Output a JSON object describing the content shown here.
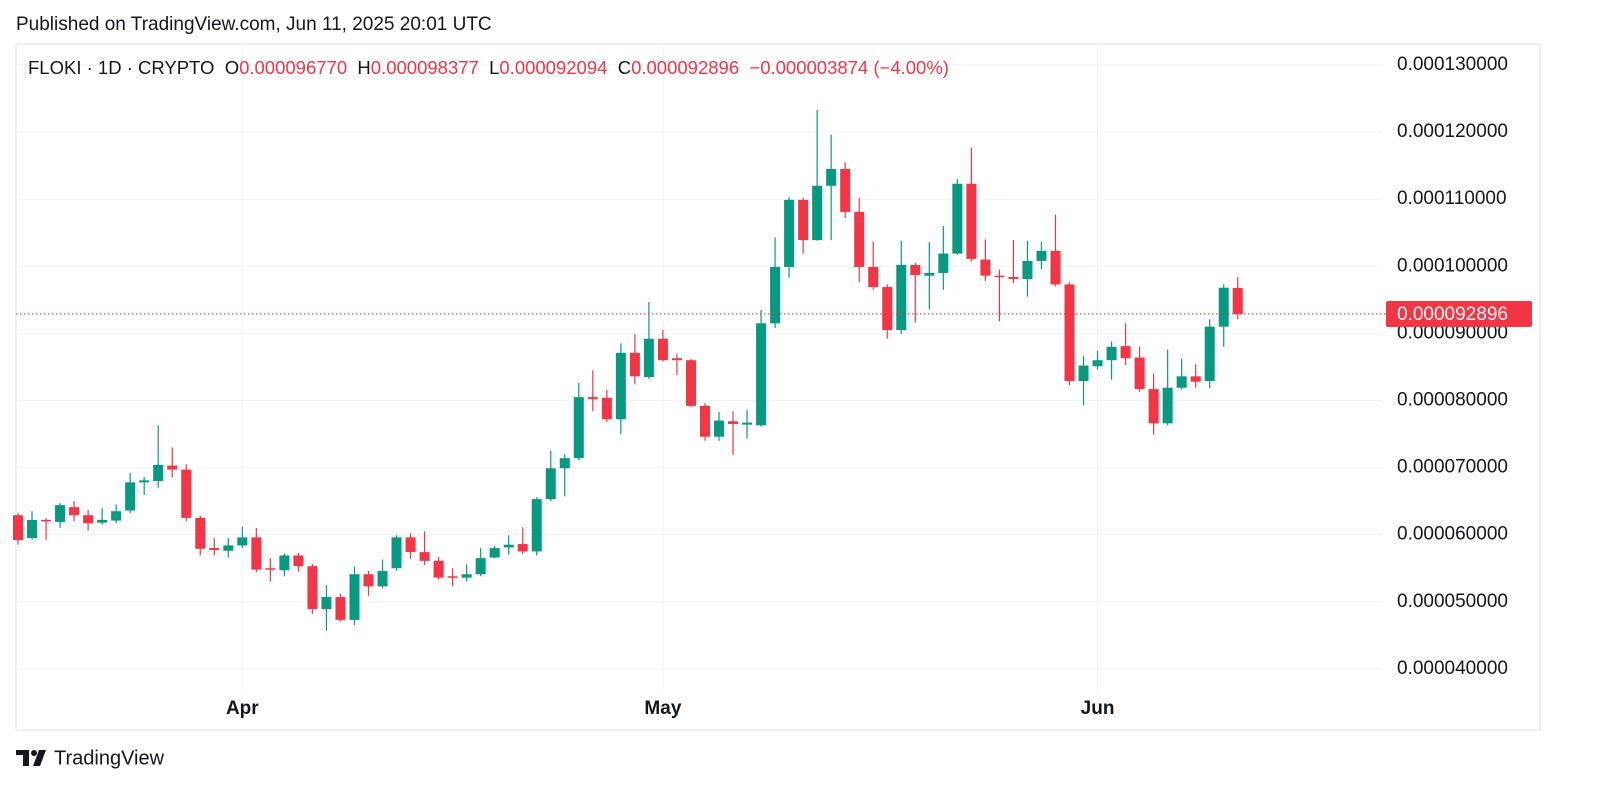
{
  "page_title": "Published on TradingView.com, Jun 11, 2025 20:01 UTC",
  "header": {
    "symbol": "FLOKI · 1D · CRYPTO",
    "open_label": "O",
    "open": "0.000096770",
    "high_label": "H",
    "high": "0.000098377",
    "low_label": "L",
    "low": "0.000092094",
    "close_label": "C",
    "close": "0.000092896",
    "change": "−0.000003874 (−4.00%)"
  },
  "footer": {
    "brand": "TradingView"
  },
  "chart_data": {
    "type": "candlestick",
    "categories": [
      null,
      null,
      null,
      null,
      null,
      null,
      null,
      null,
      null,
      null,
      null,
      null,
      null,
      null,
      null,
      null,
      "Apr",
      null,
      null,
      null,
      null,
      null,
      null,
      null,
      null,
      null,
      null,
      null,
      null,
      null,
      null,
      null,
      null,
      null,
      null,
      null,
      null,
      null,
      null,
      null,
      null,
      null,
      null,
      null,
      null,
      null,
      "May",
      null,
      null,
      null,
      null,
      null,
      null,
      null,
      null,
      null,
      null,
      null,
      null,
      null,
      null,
      null,
      null,
      null,
      null,
      null,
      null,
      null,
      null,
      null,
      null,
      null,
      null,
      null,
      null,
      null,
      null,
      "Jun",
      null,
      null,
      null,
      null,
      null,
      null,
      null,
      null,
      null,
      null
    ],
    "open": [
      6.29e-05,
      5.95e-05,
      6.22e-05,
      6.19e-05,
      6.41e-05,
      6.29e-05,
      6.18e-05,
      6.21e-05,
      6.36e-05,
      6.78e-05,
      6.8e-05,
      7.03e-05,
      6.97e-05,
      6.25e-05,
      5.8e-05,
      5.76e-05,
      5.84e-05,
      5.96e-05,
      5.5e-05,
      5.47e-05,
      5.69e-05,
      5.53e-05,
      4.89e-05,
      5.07e-05,
      4.73e-05,
      5.41e-05,
      5.23e-05,
      5.5e-05,
      5.96e-05,
      5.74e-05,
      5.61e-05,
      5.38e-05,
      5.36e-05,
      5.41e-05,
      5.66e-05,
      5.81e-05,
      5.86e-05,
      5.75e-05,
      6.53e-05,
      6.99e-05,
      7.14e-05,
      8.05e-05,
      8.04e-05,
      7.72e-05,
      8.71e-05,
      8.35e-05,
      8.92e-05,
      8.63e-05,
      8.6e-05,
      7.92e-05,
      7.46e-05,
      7.69e-05,
      7.64e-05,
      7.63e-05,
      9.15e-05,
      9.99e-05,
      0.0001099,
      0.0001039,
      0.000112,
      0.0001145,
      0.0001081,
      9.99e-05,
      9.69e-05,
      9.05e-05,
      0.0001002,
      9.86e-05,
      9.9e-05,
      0.0001019,
      0.0001123,
      0.000101,
      9.86e-05,
      9.84e-05,
      9.81e-05,
      0.0001008,
      0.0001023,
      9.73e-05,
      8.29e-05,
      8.51e-05,
      8.6e-05,
      8.81e-05,
      8.64e-05,
      8.17e-05,
      7.66e-05,
      8.19e-05,
      8.36e-05,
      8.29e-05,
      9.1e-05,
      9.677e-05
    ],
    "high": [
      6.32e-05,
      6.35e-05,
      6.25e-05,
      6.47e-05,
      6.5e-05,
      6.37e-05,
      6.4e-05,
      6.45e-05,
      6.92e-05,
      6.86e-05,
      7.63e-05,
      7.3e-05,
      7.05e-05,
      6.28e-05,
      5.95e-05,
      5.95e-05,
      6.12e-05,
      6.1e-05,
      5.65e-05,
      5.72e-05,
      5.73e-05,
      5.56e-05,
      5.25e-05,
      5.12e-05,
      5.52e-05,
      5.46e-05,
      5.63e-05,
      5.99e-05,
      6.02e-05,
      6.05e-05,
      5.67e-05,
      5.5e-05,
      5.56e-05,
      5.8e-05,
      5.83e-05,
      5.99e-05,
      6.11e-05,
      6.56e-05,
      7.25e-05,
      7.2e-05,
      8.26e-05,
      8.45e-05,
      8.16e-05,
      8.85e-05,
      8.99e-05,
      9.47e-05,
      9.05e-05,
      8.7e-05,
      8.62e-05,
      7.96e-05,
      7.83e-05,
      7.84e-05,
      7.86e-05,
      9.35e-05,
      0.0001043,
      0.0001103,
      0.0001102,
      0.0001233,
      0.0001196,
      0.0001155,
      0.0001102,
      0.0001037,
      9.73e-05,
      0.0001038,
      0.0001005,
      0.0001036,
      0.000106,
      0.000113,
      0.0001177,
      0.000104,
      9.95e-05,
      0.0001039,
      0.0001038,
      0.0001037,
      0.0001077,
      9.76e-05,
      8.66e-05,
      8.74e-05,
      8.88e-05,
      9.15e-05,
      8.8e-05,
      8.4e-05,
      8.76e-05,
      8.62e-05,
      8.54e-05,
      9.21e-05,
      9.73e-05,
      9.8377e-05
    ],
    "low": [
      5.85e-05,
      5.93e-05,
      5.92e-05,
      6.1e-05,
      6.2e-05,
      6.06e-05,
      6.15e-05,
      6.17e-05,
      6.32e-05,
      6.59e-05,
      6.7e-05,
      6.85e-05,
      6.2e-05,
      5.69e-05,
      5.69e-05,
      5.66e-05,
      5.8e-05,
      5.44e-05,
      5.3e-05,
      5.38e-05,
      5.45e-05,
      4.82e-05,
      4.57e-05,
      4.7e-05,
      4.65e-05,
      5.09e-05,
      5.2e-05,
      5.46e-05,
      5.64e-05,
      5.55e-05,
      5.33e-05,
      5.23e-05,
      5.3e-05,
      5.38e-05,
      5.65e-05,
      5.7e-05,
      5.71e-05,
      5.69e-05,
      6.5e-05,
      6.57e-05,
      7.11e-05,
      7.84e-05,
      7.68e-05,
      7.5e-05,
      8.24e-05,
      8.32e-05,
      8.58e-05,
      8.38e-05,
      7.9e-05,
      7.4e-05,
      7.4e-05,
      7.19e-05,
      7.43e-05,
      7.61e-05,
      9.08e-05,
      9.83e-05,
      0.0001019,
      0.0001038,
      0.0001039,
      0.0001072,
      9.76e-05,
      9.65e-05,
      8.92e-05,
      8.99e-05,
      9.16e-05,
      9.36e-05,
      9.65e-05,
      0.0001017,
      0.0001007,
      9.78e-05,
      9.18e-05,
      9.75e-05,
      9.55e-05,
      9.96e-05,
      9.7e-05,
      8.23e-05,
      7.93e-05,
      8.46e-05,
      8.31e-05,
      8.53e-05,
      8.13e-05,
      7.49e-05,
      7.63e-05,
      8.16e-05,
      8.19e-05,
      8.18e-05,
      8.8e-05,
      9.2094e-05
    ],
    "close": [
      5.92e-05,
      6.22e-05,
      6.2e-05,
      6.44e-05,
      6.29e-05,
      6.17e-05,
      6.22e-05,
      6.35e-05,
      6.78e-05,
      6.81e-05,
      7.04e-05,
      6.97e-05,
      6.25e-05,
      5.79e-05,
      5.77e-05,
      5.84e-05,
      5.96e-05,
      5.48e-05,
      5.48e-05,
      5.69e-05,
      5.53e-05,
      4.89e-05,
      5.07e-05,
      4.73e-05,
      5.41e-05,
      5.23e-05,
      5.46e-05,
      5.96e-05,
      5.74e-05,
      5.61e-05,
      5.36e-05,
      5.36e-05,
      5.41e-05,
      5.65e-05,
      5.8e-05,
      5.85e-05,
      5.75e-05,
      6.53e-05,
      6.99e-05,
      7.14e-05,
      8.05e-05,
      8.02e-05,
      7.72e-05,
      8.71e-05,
      8.36e-05,
      8.92e-05,
      8.6e-05,
      8.6e-05,
      7.92e-05,
      7.46e-05,
      7.7e-05,
      7.65e-05,
      7.67e-05,
      9.15e-05,
      9.99e-05,
      0.0001099,
      0.0001039,
      0.000112,
      0.0001145,
      0.0001081,
      9.99e-05,
      9.69e-05,
      9.05e-05,
      0.0001002,
      9.87e-05,
      9.9e-05,
      0.0001019,
      0.0001123,
      0.0001011,
      9.86e-05,
      9.84e-05,
      9.81e-05,
      0.0001008,
      0.0001023,
      9.73e-05,
      8.29e-05,
      8.52e-05,
      8.6e-05,
      8.8e-05,
      8.63e-05,
      8.17e-05,
      7.66e-05,
      8.19e-05,
      8.36e-05,
      8.28e-05,
      9.1e-05,
      9.68e-05,
      9.2896e-05
    ],
    "up_color": "#089981",
    "down_color": "#f23645",
    "ylim": [
      3.685e-05,
      0.00013313
    ],
    "yticks": [
      {
        "value": 4e-05,
        "label": "0.000040000"
      },
      {
        "value": 5e-05,
        "label": "0.000050000"
      },
      {
        "value": 6e-05,
        "label": "0.000060000"
      },
      {
        "value": 7e-05,
        "label": "0.000070000"
      },
      {
        "value": 8e-05,
        "label": "0.000080000"
      },
      {
        "value": 9e-05,
        "label": "0.000090000"
      },
      {
        "value": 0.0001,
        "label": "0.000100000"
      },
      {
        "value": 0.00011,
        "label": "0.000110000"
      },
      {
        "value": 0.00012,
        "label": "0.000120000"
      },
      {
        "value": 0.00013,
        "label": "0.000130000"
      }
    ],
    "last_price": {
      "value": 9.2896e-05,
      "label": "0.000092896"
    },
    "grid": true
  }
}
